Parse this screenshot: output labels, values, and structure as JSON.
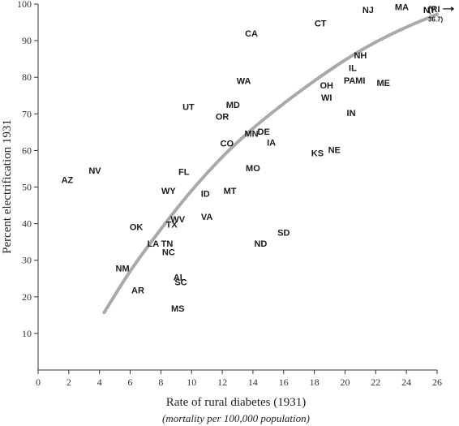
{
  "chart_data": {
    "type": "scatter",
    "xlabel": "Rate of rural diabetes (1931)",
    "xlabel_sub": "(mortality per 100,000 population)",
    "ylabel": "Percent electrification 1931",
    "xlim": [
      0,
      26
    ],
    "ylim": [
      0,
      100
    ],
    "x_ticks": [
      0,
      2,
      4,
      6,
      8,
      10,
      12,
      14,
      16,
      18,
      20,
      22,
      24,
      26
    ],
    "y_ticks": [
      10,
      20,
      30,
      40,
      50,
      60,
      70,
      80,
      90,
      100
    ],
    "grid": false,
    "points": [
      {
        "label": "NJ",
        "x": 21.5,
        "y": 98.5
      },
      {
        "label": "MA",
        "x": 23.7,
        "y": 99.2
      },
      {
        "label": "NY",
        "x": 25.5,
        "y": 98.5
      },
      {
        "label": "CT",
        "x": 18.4,
        "y": 94.8
      },
      {
        "label": "CA",
        "x": 13.9,
        "y": 92.0
      },
      {
        "label": "NH",
        "x": 21.0,
        "y": 86.0
      },
      {
        "label": "IL",
        "x": 20.5,
        "y": 82.6
      },
      {
        "label": "PA",
        "x": 20.3,
        "y": 79.2
      },
      {
        "label": "MI",
        "x": 21.0,
        "y": 79.2
      },
      {
        "label": "ME",
        "x": 22.5,
        "y": 78.5
      },
      {
        "label": "WA",
        "x": 13.4,
        "y": 79.0
      },
      {
        "label": "OH",
        "x": 18.8,
        "y": 77.8
      },
      {
        "label": "WI",
        "x": 18.8,
        "y": 74.5
      },
      {
        "label": "UT",
        "x": 9.8,
        "y": 72.0
      },
      {
        "label": "MD",
        "x": 12.7,
        "y": 72.5
      },
      {
        "label": "OR",
        "x": 12.0,
        "y": 69.3
      },
      {
        "label": "IN",
        "x": 20.4,
        "y": 70.3
      },
      {
        "label": "MN",
        "x": 13.9,
        "y": 64.6
      },
      {
        "label": "DE",
        "x": 14.7,
        "y": 65.2
      },
      {
        "label": "CO",
        "x": 12.3,
        "y": 62.0
      },
      {
        "label": "IA",
        "x": 15.2,
        "y": 62.2
      },
      {
        "label": "NE",
        "x": 19.3,
        "y": 60.2
      },
      {
        "label": "KS",
        "x": 18.2,
        "y": 59.3
      },
      {
        "label": "MO",
        "x": 14.0,
        "y": 55.2
      },
      {
        "label": "AZ",
        "x": 1.9,
        "y": 52.0
      },
      {
        "label": "NV",
        "x": 3.7,
        "y": 54.5
      },
      {
        "label": "FL",
        "x": 9.5,
        "y": 54.2
      },
      {
        "label": "WY",
        "x": 8.5,
        "y": 49.0
      },
      {
        "label": "ID",
        "x": 10.9,
        "y": 48.2
      },
      {
        "label": "MT",
        "x": 12.5,
        "y": 49.0
      },
      {
        "label": "WV",
        "x": 9.1,
        "y": 41.2
      },
      {
        "label": "VA",
        "x": 11.0,
        "y": 41.9
      },
      {
        "label": "TX",
        "x": 8.7,
        "y": 39.8
      },
      {
        "label": "OK",
        "x": 6.4,
        "y": 39.1
      },
      {
        "label": "SD",
        "x": 16.0,
        "y": 37.6
      },
      {
        "label": "LA",
        "x": 7.5,
        "y": 34.6
      },
      {
        "label": "TN",
        "x": 8.4,
        "y": 34.6
      },
      {
        "label": "ND",
        "x": 14.5,
        "y": 34.6
      },
      {
        "label": "NC",
        "x": 8.5,
        "y": 32.3
      },
      {
        "label": "NM",
        "x": 5.5,
        "y": 27.8
      },
      {
        "label": "AL",
        "x": 9.2,
        "y": 25.4
      },
      {
        "label": "SC",
        "x": 9.3,
        "y": 24.1
      },
      {
        "label": "AR",
        "x": 6.5,
        "y": 21.8
      },
      {
        "label": "MS",
        "x": 9.1,
        "y": 16.9
      }
    ],
    "trend_curve": [
      [
        4.3,
        15.7
      ],
      [
        6.0,
        27.0
      ],
      [
        8.0,
        38.5
      ],
      [
        10.0,
        49.0
      ],
      [
        12.0,
        58.2
      ],
      [
        14.0,
        66.0
      ],
      [
        16.0,
        72.8
      ],
      [
        18.0,
        79.0
      ],
      [
        20.0,
        84.7
      ],
      [
        22.0,
        89.6
      ],
      [
        24.0,
        93.7
      ],
      [
        26.0,
        97.2
      ]
    ],
    "annotations": [
      {
        "text": "(RI",
        "x": 25.8,
        "y": 98.7
      },
      {
        "text": "36.7)",
        "x": 25.9,
        "y": 95.9
      }
    ]
  },
  "colors": {
    "curve": "#a9a9a9",
    "axis": "#333333",
    "text": "#1a1a1a"
  }
}
